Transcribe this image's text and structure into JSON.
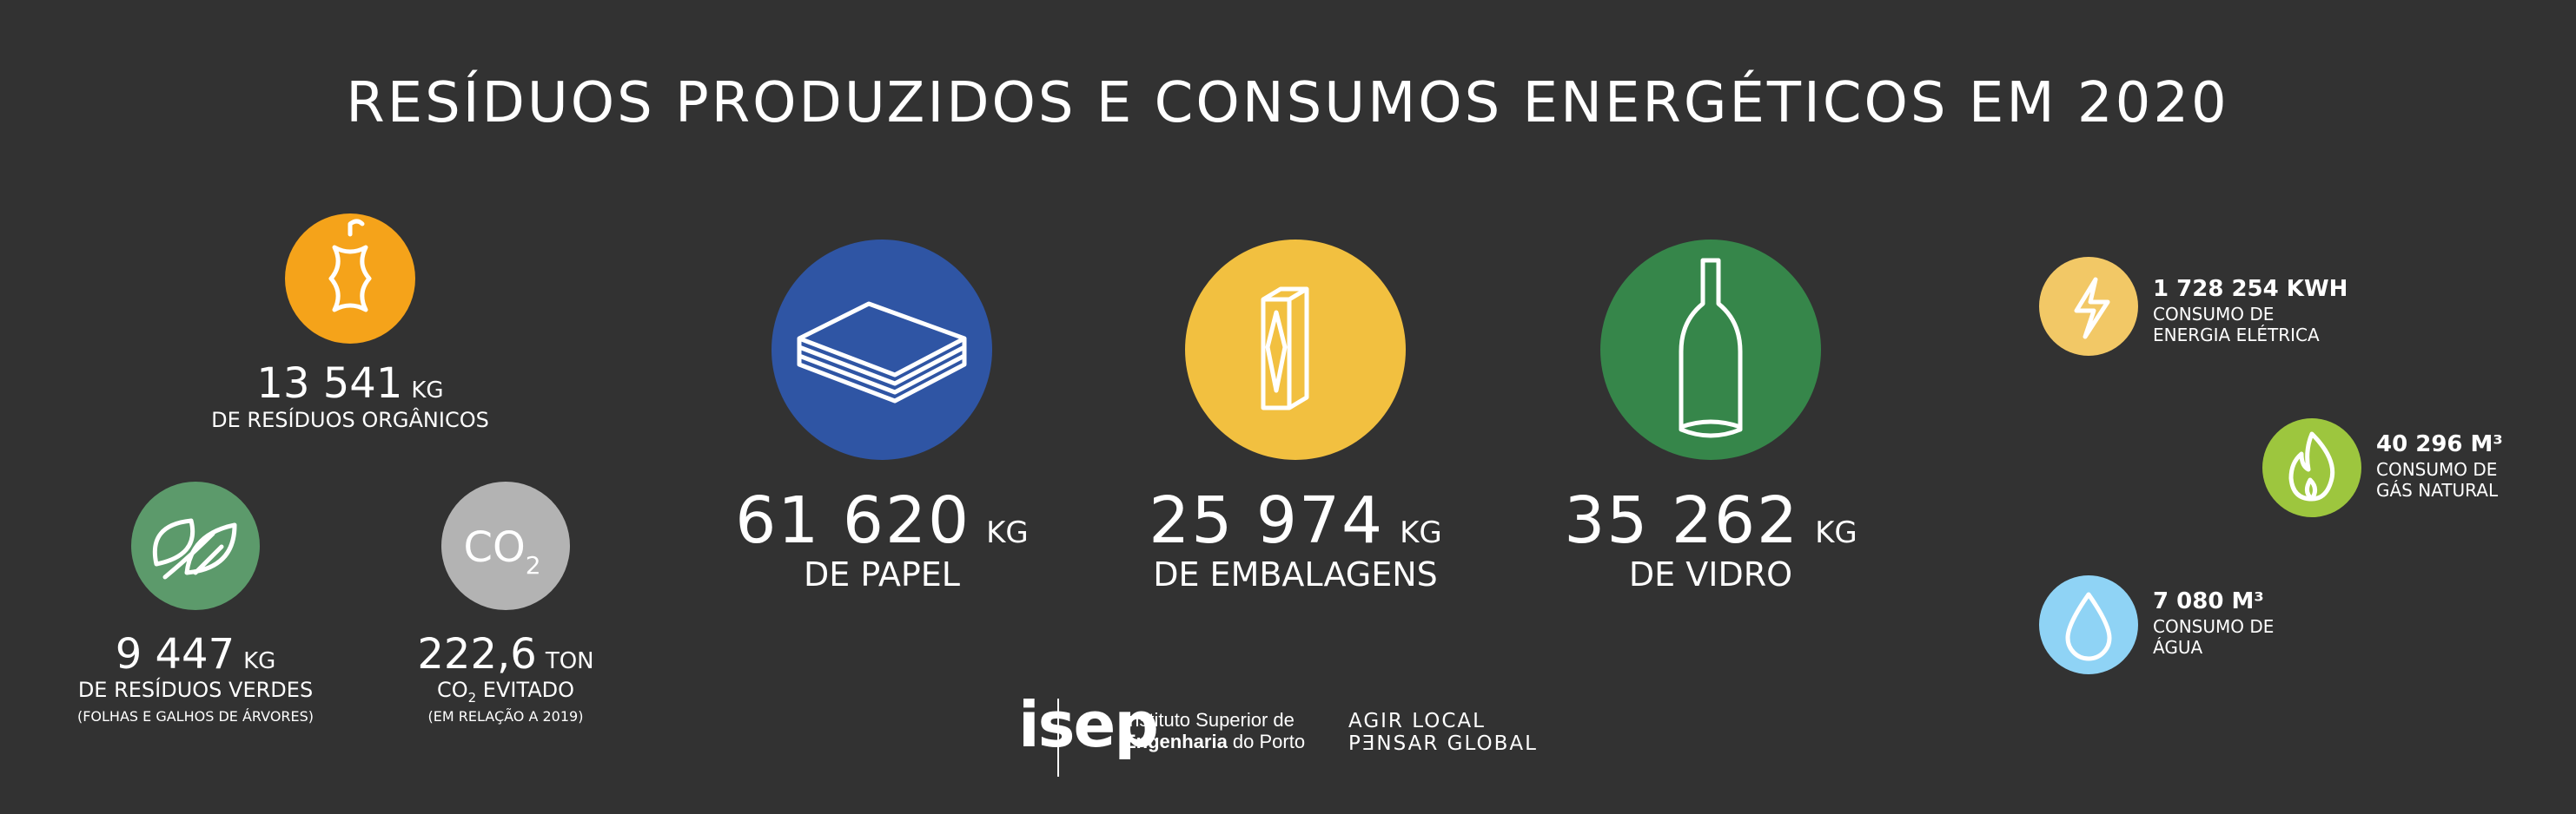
{
  "title": "RESÍDUOS PRODUZIDOS E CONSUMOS ENERGÉTICOS EM 2020",
  "organic": {
    "value": "13 541",
    "unit": "KG",
    "label": "DE RESÍDUOS ORGÂNICOS"
  },
  "green": {
    "value": "9 447",
    "unit": "KG",
    "label": "DE RESÍDUOS VERDES",
    "note": "(FOLHAS E GALHOS DE ÁRVORES)"
  },
  "co2": {
    "icon_text": "CO",
    "icon_sub": "2",
    "value": "222,6",
    "unit": "TON",
    "label_main": "CO",
    "label_sub": "2",
    "label_rest": " EVITADO",
    "note": "(EM RELAÇÃO A 2019)"
  },
  "main_items": [
    {
      "value": "61 620",
      "unit": "KG",
      "label": "DE PAPEL"
    },
    {
      "value": "25 974",
      "unit": "KG",
      "label": "DE EMBALAGENS"
    },
    {
      "value": "35 262",
      "unit": "KG",
      "label": "DE VIDRO"
    }
  ],
  "energy": [
    {
      "value": "1 728 254 KWH",
      "lines": [
        "CONSUMO DE",
        "ENERGIA ELÉTRICA"
      ]
    },
    {
      "value": "40 296 M³",
      "lines": [
        "CONSUMO DE",
        "GÁS NATURAL"
      ]
    },
    {
      "value": "7 080 M³",
      "lines": [
        "CONSUMO DE",
        "ÁGUA"
      ]
    }
  ],
  "footer": {
    "logo": "isep",
    "institute_1": "Instituto Superior de",
    "institute_2_bold": "Engenharia",
    "institute_2_rest": " do Porto",
    "slogan": [
      "AGIR LOCAL",
      "PƎNSAR GLOBAL"
    ]
  }
}
